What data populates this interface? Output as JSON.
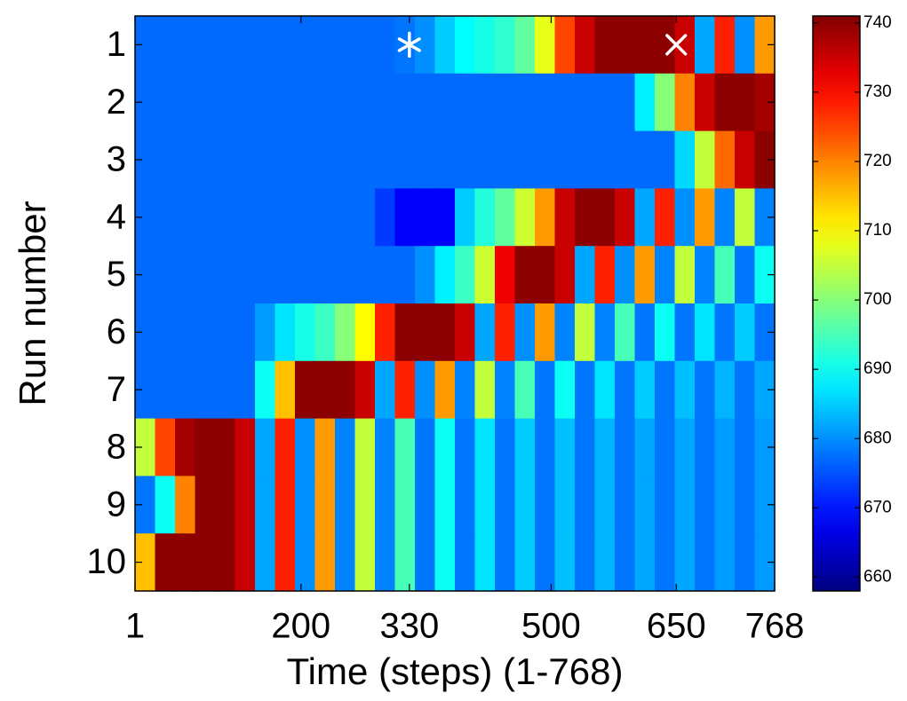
{
  "chart_data": {
    "type": "heatmap",
    "xlabel": "Time (steps) (1-768)",
    "ylabel": "Run number",
    "categories": [
      "1",
      "2",
      "3",
      "4",
      "5",
      "6",
      "7",
      "8",
      "9",
      "10"
    ],
    "xlim": [
      1,
      768
    ],
    "xticks": [
      1,
      200,
      330,
      500,
      650,
      768
    ],
    "colormap": "jet",
    "clim": [
      658,
      741
    ],
    "cticks": [
      660,
      670,
      680,
      690,
      700,
      710,
      720,
      730,
      740
    ],
    "values": [
      [
        677,
        677,
        677,
        677,
        677,
        677,
        677,
        677,
        677,
        677,
        677,
        677,
        677,
        678,
        680,
        685,
        689,
        691,
        693,
        697,
        708,
        725,
        735,
        740,
        740,
        740,
        740,
        735,
        682,
        728,
        680,
        718
      ],
      [
        677,
        677,
        677,
        677,
        677,
        677,
        677,
        677,
        677,
        677,
        677,
        677,
        677,
        677,
        677,
        677,
        677,
        677,
        677,
        677,
        677,
        677,
        677,
        677,
        677,
        688,
        700,
        720,
        735,
        740,
        740,
        738
      ],
      [
        677,
        677,
        677,
        677,
        677,
        677,
        677,
        677,
        677,
        677,
        677,
        677,
        677,
        677,
        677,
        677,
        677,
        677,
        677,
        677,
        677,
        677,
        677,
        677,
        677,
        677,
        677,
        686,
        705,
        722,
        735,
        740
      ],
      [
        677,
        677,
        677,
        677,
        677,
        677,
        677,
        677,
        677,
        677,
        677,
        677,
        673,
        668,
        668,
        668,
        685,
        692,
        697,
        706,
        718,
        735,
        740,
        740,
        735,
        682,
        728,
        680,
        718,
        679,
        705,
        679
      ],
      [
        677,
        677,
        677,
        677,
        677,
        677,
        677,
        677,
        677,
        677,
        677,
        677,
        677,
        677,
        680,
        688,
        694,
        706,
        732,
        740,
        740,
        735,
        682,
        728,
        680,
        718,
        679,
        705,
        679,
        695,
        678,
        690
      ],
      [
        677,
        677,
        677,
        677,
        677,
        677,
        681,
        687,
        691,
        694,
        700,
        710,
        728,
        740,
        740,
        740,
        735,
        682,
        728,
        680,
        718,
        679,
        705,
        679,
        695,
        678,
        690,
        678,
        687,
        678,
        685,
        678
      ],
      [
        677,
        677,
        677,
        677,
        677,
        677,
        690,
        715,
        740,
        740,
        740,
        735,
        682,
        728,
        680,
        718,
        679,
        705,
        679,
        695,
        678,
        690,
        678,
        687,
        678,
        685,
        678,
        684,
        678,
        683,
        678,
        682
      ],
      [
        705,
        725,
        738,
        740,
        740,
        735,
        682,
        728,
        680,
        718,
        679,
        705,
        679,
        695,
        678,
        690,
        678,
        687,
        678,
        685,
        678,
        684,
        678,
        683,
        678,
        682,
        678,
        682,
        678,
        681,
        678,
        681
      ],
      [
        678,
        690,
        720,
        740,
        740,
        735,
        682,
        728,
        680,
        718,
        679,
        705,
        679,
        695,
        678,
        690,
        678,
        687,
        678,
        685,
        678,
        684,
        678,
        683,
        678,
        682,
        678,
        682,
        678,
        681,
        678,
        681
      ],
      [
        715,
        740,
        740,
        740,
        740,
        735,
        682,
        728,
        680,
        718,
        679,
        705,
        679,
        695,
        678,
        690,
        678,
        687,
        678,
        685,
        678,
        684,
        678,
        683,
        678,
        682,
        678,
        682,
        678,
        681,
        678,
        681
      ]
    ],
    "markers": [
      {
        "x": 330,
        "y": "1",
        "symbol": "star",
        "color": "#ffffff"
      },
      {
        "x": 650,
        "y": "1",
        "symbol": "x",
        "color": "#ffffff"
      }
    ]
  }
}
